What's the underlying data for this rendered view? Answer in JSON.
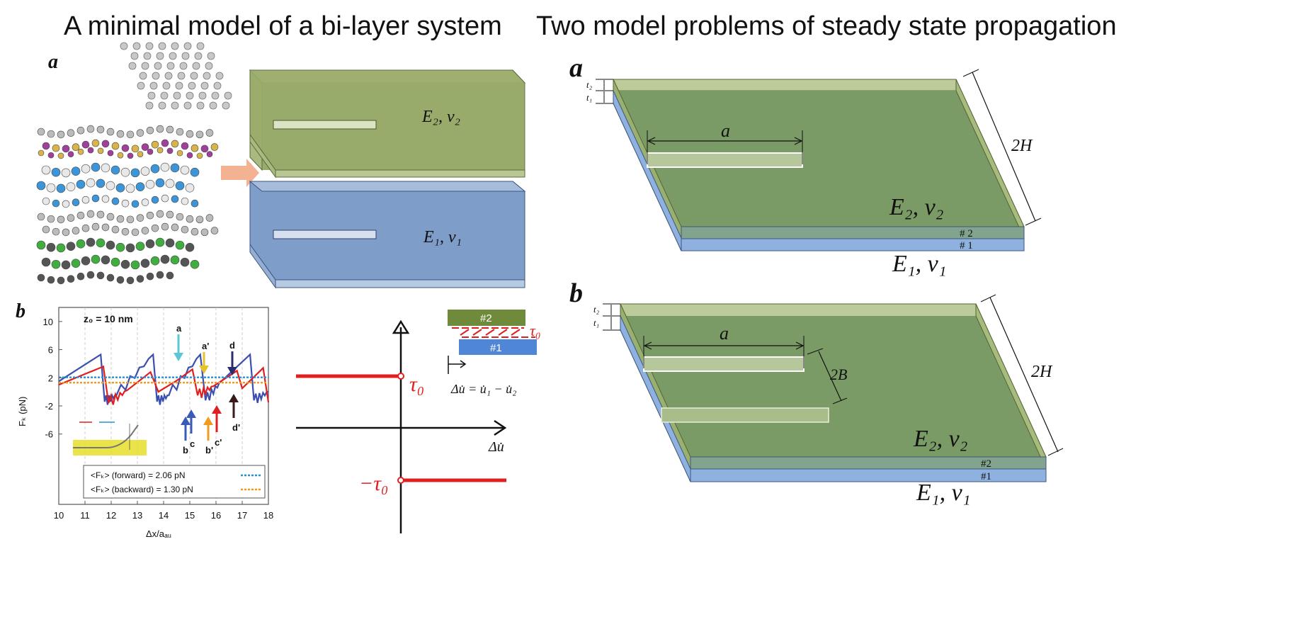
{
  "headings": {
    "left": "A minimal model of a bi-layer system",
    "right": "Two model problems of steady state propagation"
  },
  "panel_left": {
    "label_a": "a",
    "label_b": "b",
    "top_plate_label": "E₂, ν₂",
    "bottom_plate_label": "E₁, ν₁"
  },
  "force_plot": {
    "annotation": "z₀ = 10 nm",
    "ylabel": "Fₖ (pN)",
    "xlabel": "Δx/aₐᵤ",
    "xticks": [
      "10",
      "11",
      "12",
      "13",
      "14",
      "15",
      "16",
      "17",
      "18"
    ],
    "yticks": [
      "10",
      "6",
      "2",
      "-2",
      "-6"
    ],
    "arrow_labels": [
      "a",
      "a'",
      "d",
      "b",
      "c",
      "b'",
      "c'",
      "d'"
    ],
    "legend": [
      "<Fₖ> (forward) = 2.06 pN",
      "<Fₖ> (backward) = 1.30 pN"
    ]
  },
  "chart_data": {
    "type": "line",
    "xlim": [
      10,
      18
    ],
    "ylim": [
      -16,
      12
    ],
    "series": [
      {
        "name": "forward",
        "color": "#3a4fb0",
        "x": [
          10,
          11.6,
          11.75,
          12.2,
          13.6,
          13.75,
          14.2,
          15.4,
          15.6,
          16.2,
          17.3,
          17.45,
          18
        ],
        "y": [
          1.5,
          5.3,
          -1.4,
          -0.5,
          5.3,
          -1.4,
          -0.5,
          5.3,
          -1.2,
          1.5,
          5.3,
          -1.2,
          0
        ]
      },
      {
        "name": "backward",
        "color": "#e02020",
        "x": [
          10,
          11.7,
          11.9,
          12.6,
          13.5,
          13.8,
          14.5,
          15.1,
          15.3,
          15.9,
          16.8,
          17.0,
          17.8,
          18
        ],
        "y": [
          1.0,
          3.6,
          -1.6,
          0.2,
          2.8,
          0.0,
          1.6,
          3.2,
          -0.5,
          0.8,
          3.0,
          0.5,
          3.4,
          -1.5
        ]
      },
      {
        "name": "<Fₖ> (forward) = 2.06 pN",
        "color": "#2a90d0",
        "x": [
          10,
          18
        ],
        "y": [
          2.06,
          2.06
        ]
      },
      {
        "name": "<Fₖ> (backward) = 1.30 pN",
        "color": "#f09a20",
        "x": [
          10,
          18
        ],
        "y": [
          1.3,
          1.3
        ]
      }
    ]
  },
  "friction_law": {
    "xlabel": "Δu̇",
    "tau_pos": "τ₀",
    "tau_neg": "−τ₀",
    "layer2": "#2",
    "layer1": "#1",
    "tau_small": "τ₀",
    "equation": "Δu̇ = u̇₁ − u̇₂",
    "colors": {
      "red": "#e02020",
      "green": "#6f8a3a",
      "blue": "#4f86d6"
    }
  },
  "problem_a": {
    "label": "a",
    "t2": "t₂",
    "t1": "t₁",
    "crack": "a",
    "width": "2H",
    "top_label": "E₂, ν₂",
    "bottom_label": "E₁, ν₁",
    "layer2": "# 2",
    "layer1": "# 1"
  },
  "problem_b": {
    "label": "b",
    "t2": "t₂",
    "t1": "t₁",
    "crack": "a",
    "spacing": "2B",
    "width": "2H",
    "top_label": "E₂, ν₂",
    "bottom_label": "E₁, ν₁",
    "layer2": "#2",
    "layer1": "#1"
  },
  "colors": {
    "green_plate": "#9aab6c",
    "blue_plate": "#7f9ec8",
    "dark_green": "#7a9a66",
    "blue_edge": "#8fb1e0"
  }
}
